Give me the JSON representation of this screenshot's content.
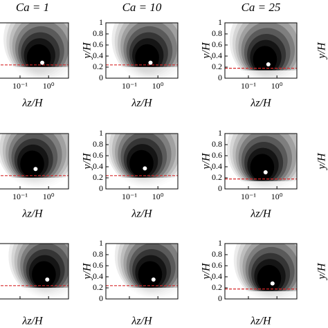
{
  "chart_data": [
    {
      "type": "contour",
      "title": "Ca = 1",
      "xlabel": "λz/H",
      "xlim": [
        0.015,
        5
      ],
      "ylim": [
        0,
        1
      ],
      "log_x": true,
      "xticks": [
        {
          "value": 0.1,
          "label": "10⁻¹"
        },
        {
          "value": 1,
          "label": "10⁰"
        }
      ],
      "peak_x": [
        0.6
      ],
      "peak_y": [
        0.28
      ],
      "hline": 0.24,
      "hline_color": "#d62728",
      "peak_color": "#ffffff"
    },
    {
      "type": "contour",
      "title": "Ca = 10",
      "xlabel": "λz/H",
      "ylabel": "y/H",
      "xlim": [
        0.015,
        5
      ],
      "ylim": [
        0,
        1
      ],
      "log_x": true,
      "xticks": [
        {
          "value": 0.1,
          "label": "10⁻¹"
        },
        {
          "value": 1,
          "label": "10⁰"
        }
      ],
      "yticks": [
        0,
        0.2,
        0.4,
        0.6,
        0.8,
        1
      ],
      "peak_x": [
        0.55
      ],
      "peak_y": [
        0.28
      ],
      "hline": 0.24,
      "hline_color": "#d62728",
      "peak_color": "#ffffff"
    },
    {
      "type": "contour",
      "title": "Ca = 25",
      "xlabel": "λz/H",
      "ylabel": "y/H",
      "xlim": [
        0.015,
        5
      ],
      "ylim": [
        0,
        1
      ],
      "log_x": true,
      "xticks": [
        {
          "value": 0.1,
          "label": "10⁻¹"
        },
        {
          "value": 1,
          "label": "10⁰"
        }
      ],
      "yticks": [
        0,
        0.2,
        0.4,
        0.6,
        0.8,
        1
      ],
      "peak_x": [
        0.5
      ],
      "peak_y": [
        0.25
      ],
      "hline": 0.18,
      "hline_color": "#d62728",
      "peak_color": "#ffffff"
    },
    {
      "type": "contour",
      "xlabel": "λz/H",
      "xlim": [
        0.015,
        5
      ],
      "ylim": [
        0,
        1
      ],
      "log_x": true,
      "xticks": [
        {
          "value": 0.1,
          "label": "10⁻¹"
        },
        {
          "value": 1,
          "label": "10⁰"
        }
      ],
      "peak_x": [
        0.35
      ],
      "peak_y": [
        0.36
      ],
      "hline": 0.24,
      "hline_color": "#d62728",
      "peak_color": "#ffffff"
    },
    {
      "type": "contour",
      "xlabel": "λz/H",
      "ylabel": "y/H",
      "xlim": [
        0.015,
        5
      ],
      "ylim": [
        0,
        1
      ],
      "log_x": true,
      "xticks": [
        {
          "value": 0.1,
          "label": "10⁻¹"
        },
        {
          "value": 1,
          "label": "10⁰"
        }
      ],
      "yticks": [
        0,
        0.2,
        0.4,
        0.6,
        0.8,
        1
      ],
      "peak_x": [
        0.35
      ],
      "peak_y": [
        0.37
      ],
      "hline": 0.24,
      "hline_color": "#d62728",
      "peak_color": "#ffffff"
    },
    {
      "type": "contour",
      "xlabel": "λz/H",
      "ylabel": "y/H",
      "xlim": [
        0.015,
        5
      ],
      "ylim": [
        0,
        1
      ],
      "log_x": true,
      "xticks": [
        {
          "value": 0.1,
          "label": "10⁻¹"
        },
        {
          "value": 1,
          "label": "10⁰"
        }
      ],
      "yticks": [
        0,
        0.2,
        0.4,
        0.6,
        0.8,
        1
      ],
      "peak_x": [
        0.4
      ],
      "peak_y": [
        0.3
      ],
      "hline": 0.18,
      "hline_color": "#d62728",
      "peak_color": "#ffffff"
    },
    {
      "type": "contour",
      "xlabel": "λz/H",
      "xlim": [
        0.015,
        5
      ],
      "ylim": [
        0,
        1
      ],
      "log_x": true,
      "xticks": [
        0.1,
        1
      ],
      "peak_x": [
        0.9
      ],
      "peak_y": [
        0.35
      ],
      "hline": 0.24,
      "hline_color": "#d62728",
      "peak_color": "#ffffff"
    },
    {
      "type": "contour",
      "xlabel": "λz/H",
      "ylabel": "y/H",
      "xlim": [
        0.015,
        5
      ],
      "ylim": [
        0,
        1
      ],
      "log_x": true,
      "xticks": [
        0.1,
        1
      ],
      "yticks": [
        0,
        0.2,
        0.4,
        0.6,
        0.8,
        1
      ],
      "peak_x": [
        0.7
      ],
      "peak_y": [
        0.35
      ],
      "hline": 0.24,
      "hline_color": "#d62728",
      "peak_color": "#ffffff"
    },
    {
      "type": "contour",
      "xlabel": "λz/H",
      "ylabel": "y/H",
      "xlim": [
        0.015,
        5
      ],
      "ylim": [
        0,
        1
      ],
      "log_x": true,
      "xticks": [
        0.1,
        1
      ],
      "yticks": [
        0,
        0.2,
        0.4,
        0.6,
        0.8,
        1
      ],
      "peak_x": [
        0.7
      ],
      "peak_y": [
        0.28
      ],
      "hline": 0.18,
      "hline_color": "#d62728",
      "peak_color": "#ffffff"
    }
  ],
  "cropped_ylabels": [
    "y/H",
    "y/H",
    "y/H"
  ]
}
